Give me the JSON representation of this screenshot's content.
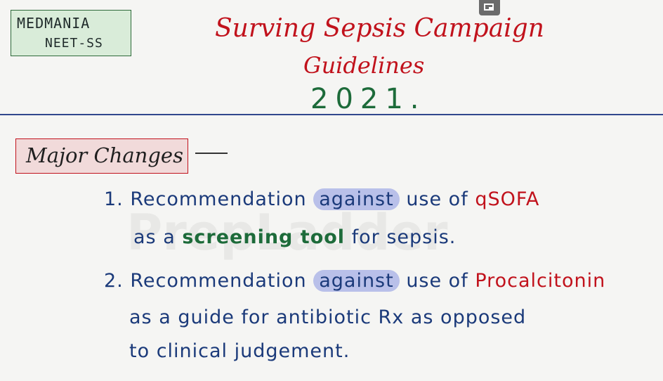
{
  "brand": {
    "line1": "MEDMANIA",
    "line2": "NEET-SS"
  },
  "title": {
    "line1": "Surving Sepsis Campaign",
    "line2": "Guidelines",
    "year": "2021."
  },
  "section": {
    "heading": "Major Changes"
  },
  "items": [
    {
      "num": "1.",
      "pre": "Recommendation",
      "highlight": "against",
      "mid": "use of",
      "term": "qSOFA",
      "l2a": "as a",
      "l2green": "screening tool",
      "l2b": "for sepsis."
    },
    {
      "num": "2.",
      "pre": "Recommendation",
      "highlight": "against",
      "mid": "use of",
      "term": "Procalcitonin",
      "l2": "as a guide for antibiotic Rx as opposed",
      "l3": "to clinical judgement."
    }
  ],
  "watermark": "PrepLadder",
  "colors": {
    "red": "#c1121c",
    "green": "#1d6b3a",
    "blue": "#1b3a7a",
    "highlight": "#b9c0e9"
  },
  "icons": {
    "pip": "picture-in-picture-icon"
  }
}
